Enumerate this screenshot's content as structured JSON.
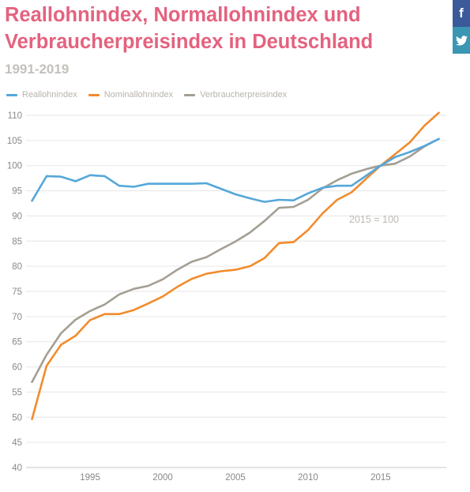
{
  "chart_data": {
    "type": "line",
    "title": "Reallohnindex, Normallohnindex und Verbraucherpreisindex in Deutschland",
    "subtitle": "1991-2019",
    "annotation": "2015 = 100",
    "ylim": [
      40,
      110
    ],
    "y_ticks": [
      40,
      45,
      50,
      55,
      60,
      65,
      70,
      75,
      80,
      85,
      90,
      95,
      100,
      105,
      110
    ],
    "xlim": [
      1991,
      2019
    ],
    "x_ticks": [
      1995,
      2000,
      2005,
      2010,
      2015
    ],
    "grid": true,
    "legend_position": "top-left",
    "x": [
      1991,
      1992,
      1993,
      1994,
      1995,
      1996,
      1997,
      1998,
      1999,
      2000,
      2001,
      2002,
      2003,
      2004,
      2005,
      2006,
      2007,
      2008,
      2009,
      2010,
      2011,
      2012,
      2013,
      2014,
      2015,
      2016,
      2017,
      2018,
      2019
    ],
    "series": [
      {
        "name": "Reallohnindex",
        "color": "#55a7da",
        "values": [
          93.0,
          97.9,
          97.8,
          96.9,
          98.1,
          97.9,
          96.0,
          95.8,
          96.4,
          96.4,
          96.4,
          96.4,
          96.5,
          95.4,
          94.3,
          93.5,
          92.8,
          93.2,
          93.1,
          94.5,
          95.6,
          96.0,
          96.0,
          98.0,
          100.0,
          101.7,
          102.7,
          103.9,
          105.3
        ]
      },
      {
        "name": "Nominallohnindex",
        "color": "#f28b2c",
        "values": [
          49.6,
          60.2,
          64.4,
          66.2,
          69.3,
          70.5,
          70.5,
          71.3,
          72.6,
          74.0,
          75.9,
          77.5,
          78.5,
          79.0,
          79.3,
          80.0,
          81.6,
          84.6,
          84.8,
          87.2,
          90.5,
          93.2,
          94.7,
          97.4,
          100.0,
          102.3,
          104.6,
          107.9,
          110.5
        ]
      },
      {
        "name": "Verbraucherpreisindex",
        "color": "#a49e94",
        "values": [
          57.0,
          62.4,
          66.7,
          69.4,
          71.1,
          72.4,
          74.4,
          75.5,
          76.1,
          77.4,
          79.3,
          80.9,
          81.8,
          83.4,
          84.9,
          86.7,
          89.0,
          91.6,
          91.8,
          93.2,
          95.5,
          97.1,
          98.4,
          99.3,
          100.0,
          100.4,
          101.8,
          103.8,
          105.3
        ]
      }
    ]
  },
  "share": {
    "facebook_glyph": "f",
    "twitter_glyph": "🐦",
    "facebook_icon": "facebook-icon",
    "twitter_icon": "twitter-icon"
  }
}
